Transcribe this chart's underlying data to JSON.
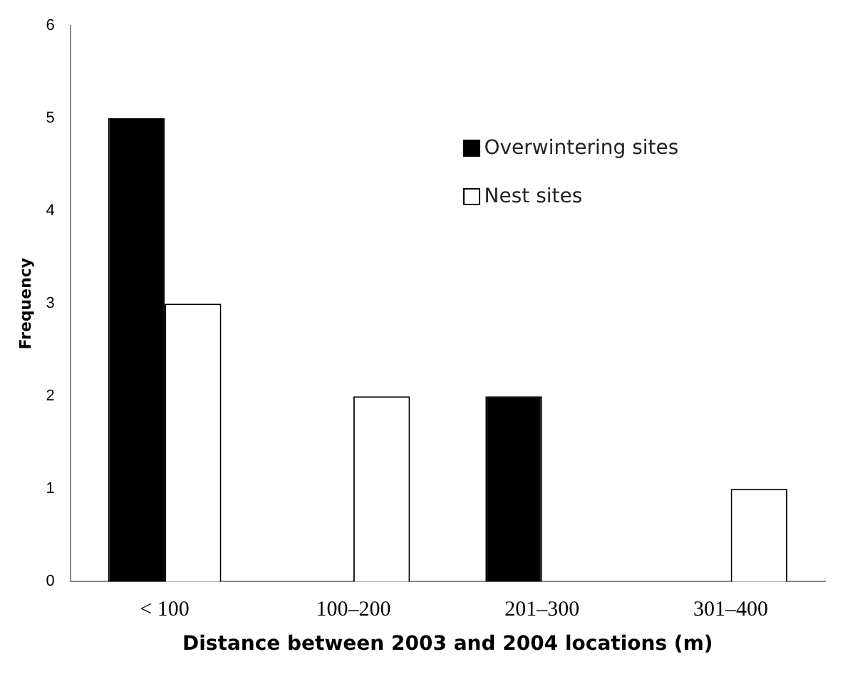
{
  "chart_data": {
    "type": "bar",
    "xlabel": "Distance between 2003 and 2004 locations (m)",
    "ylabel": "Frequency",
    "categories": [
      "< 100",
      "100–200",
      "201–300",
      "301–400"
    ],
    "series": [
      {
        "name": "Overwintering sites",
        "color": "#000000",
        "values": [
          5,
          0,
          2,
          0
        ]
      },
      {
        "name": "Nest sites",
        "color": "#ffffff",
        "values": [
          3,
          2,
          0,
          1
        ]
      }
    ],
    "ylim": [
      0,
      6
    ],
    "yticks": [
      0,
      1,
      2,
      3,
      4,
      5,
      6
    ],
    "grid": false,
    "legend": "top right"
  }
}
